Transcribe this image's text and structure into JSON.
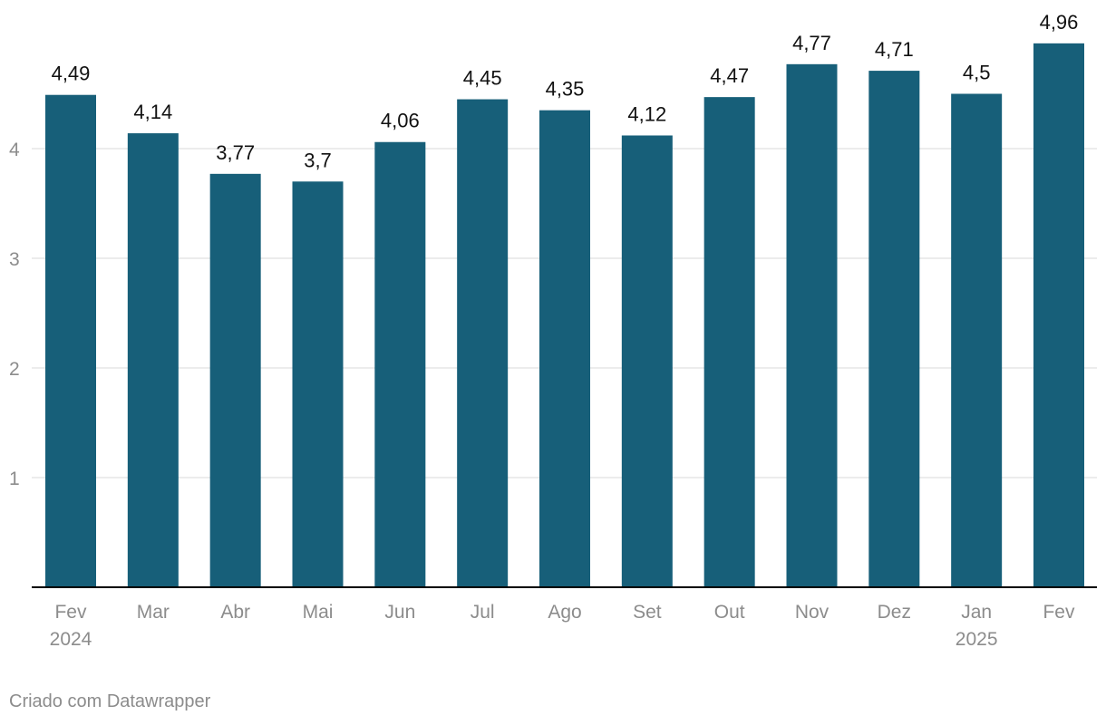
{
  "chart_data": {
    "type": "bar",
    "categories": [
      [
        "Fev",
        "2024"
      ],
      [
        "Mar"
      ],
      [
        "Abr"
      ],
      [
        "Mai"
      ],
      [
        "Jun"
      ],
      [
        "Jul"
      ],
      [
        "Ago"
      ],
      [
        "Set"
      ],
      [
        "Out"
      ],
      [
        "Nov"
      ],
      [
        "Dez"
      ],
      [
        "Jan",
        "2025"
      ],
      [
        "Fev"
      ]
    ],
    "values": [
      4.49,
      4.14,
      3.77,
      3.7,
      4.06,
      4.45,
      4.35,
      4.12,
      4.47,
      4.77,
      4.71,
      4.5,
      4.96
    ],
    "value_labels": [
      "4,49",
      "4,14",
      "3,77",
      "3,7",
      "4,06",
      "4,45",
      "4,35",
      "4,12",
      "4,47",
      "4,77",
      "4,71",
      "4,5",
      "4,96"
    ],
    "yticks": [
      1,
      2,
      3,
      4
    ],
    "ylim": [
      0,
      5
    ],
    "grid": true,
    "bar_color": "#175f79",
    "title": "",
    "xlabel": "",
    "ylabel": ""
  },
  "footer": {
    "credit": "Criado com Datawrapper"
  }
}
